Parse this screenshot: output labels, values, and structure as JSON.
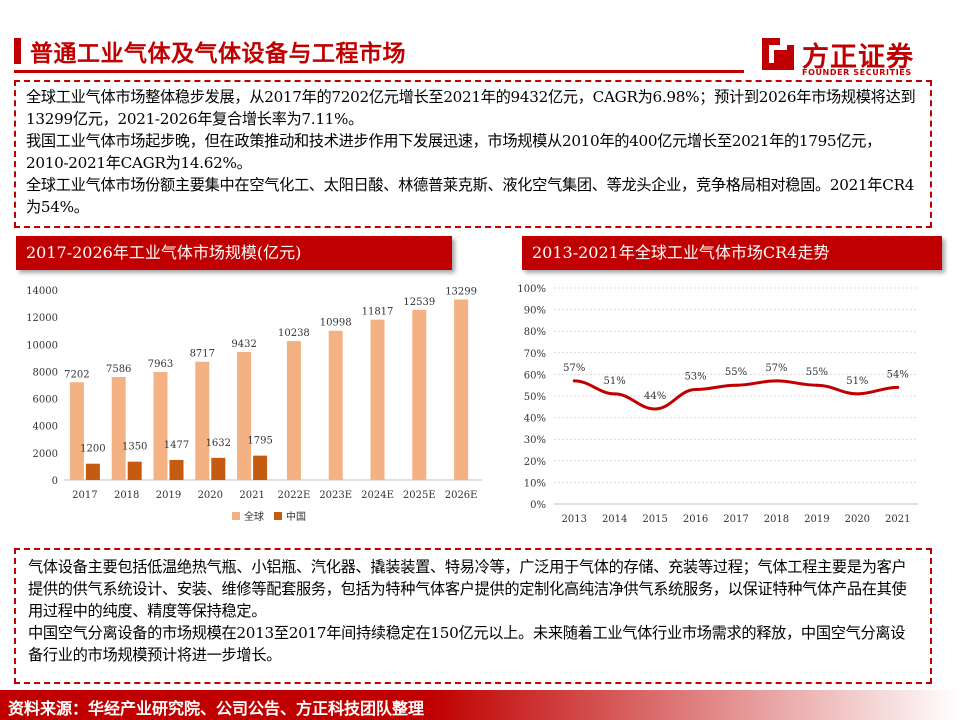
{
  "header": {
    "title": "普通工业气体及气体设备与工程市场",
    "logo_cn": "方正证券",
    "logo_en": "FOUNDER SECURITIES"
  },
  "intro": {
    "p1": "全球工业气体市场整体稳步发展，从2017年的7202亿元增长至2021年的9432亿元，CAGR为6.98%；预计到2026年市场规模将达到13299亿元，2021-2026年复合增长率为7.11%。",
    "p2": "我国工业气体市场起步晚，但在政策推动和技术进步作用下发展迅速，市场规模从2010年的400亿元增长至2021年的1795亿元，2010-2021年CAGR为14.62%。",
    "p3": "全球工业气体市场份额主要集中在空气化工、太阳日酸、林德普莱克斯、液化空气集团、等龙头企业，竞争格局相对稳固。2021年CR4为54%。"
  },
  "chart_data": [
    {
      "type": "bar",
      "title": "2017-2026年工业气体市场规模(亿元)",
      "categories": [
        "2017",
        "2018",
        "2019",
        "2020",
        "2021",
        "2022E",
        "2023E",
        "2024E",
        "2025E",
        "2026E"
      ],
      "series": [
        {
          "name": "全球",
          "values": [
            7202,
            7586,
            7963,
            8717,
            9432,
            10238,
            10998,
            11817,
            12539,
            13299
          ]
        },
        {
          "name": "中国",
          "values": [
            1200,
            1350,
            1477,
            1632,
            1795,
            null,
            null,
            null,
            null,
            null
          ]
        }
      ],
      "y_ticks": [
        "0",
        "2000",
        "4000",
        "6000",
        "8000",
        "10000",
        "12000",
        "14000"
      ],
      "ylim": [
        0,
        14000
      ],
      "legend_position": "bottom",
      "colors": {
        "全球": "#f4b183",
        "中国": "#c55a11"
      }
    },
    {
      "type": "line",
      "title": "2013-2021年全球工业气体市场CR4走势",
      "x": [
        "2013",
        "2014",
        "2015",
        "2016",
        "2017",
        "2018",
        "2019",
        "2020",
        "2021"
      ],
      "values": [
        57,
        51,
        44,
        53,
        55,
        57,
        55,
        51,
        54
      ],
      "labels": [
        "57%",
        "51%",
        "44%",
        "53%",
        "55%",
        "57%",
        "55%",
        "51%",
        "54%"
      ],
      "y_ticks": [
        "0%",
        "10%",
        "20%",
        "30%",
        "40%",
        "50%",
        "60%",
        "70%",
        "80%",
        "90%",
        "100%"
      ],
      "ylim": [
        0,
        100
      ],
      "color": "#c00000"
    }
  ],
  "equipment": {
    "p1": "气体设备主要包括低温绝热气瓶、小铝瓶、汽化器、撬装装置、特易冷等，广泛用于气体的存储、充装等过程；气体工程主要是为客户提供的供气系统设计、安装、维修等配套服务，包括为特种气体客户提供的定制化高纯洁净供气系统服务，以保证特种气体产品在其使用过程中的纯度、精度等保持稳定。",
    "p2": "中国空气分离设备的市场规模在2013至2017年间持续稳定在150亿元以上。未来随着工业气体行业市场需求的释放，中国空气分离设备行业的市场规模预计将进一步增长。"
  },
  "footer": {
    "source": "资料来源：华经产业研究院、公司公告、方正科技团队整理"
  }
}
